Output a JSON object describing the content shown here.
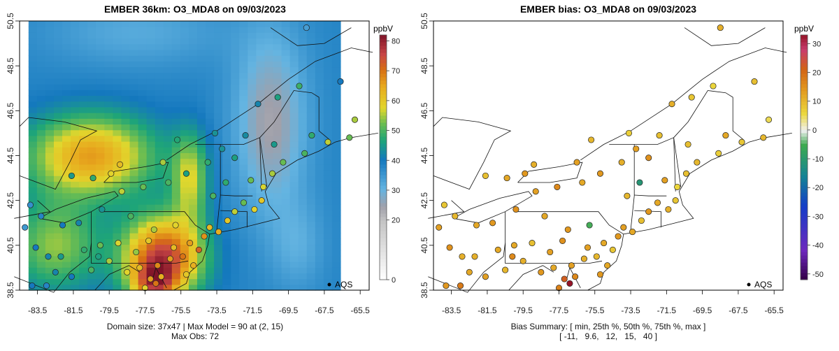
{
  "chart_data": [
    {
      "type": "heatmap",
      "title": "EMBER 36km: O3_MDA8 on 09/03/2023",
      "x_ticks": [
        "-83.5",
        "-81.5",
        "-79.5",
        "-77.5",
        "-75.5",
        "-73.5",
        "-71.5",
        "-69.5",
        "-67.5",
        "-65.5"
      ],
      "y_ticks": [
        "38.5",
        "40.5",
        "42.5",
        "44.5",
        "46.5",
        "48.5",
        "50.5"
      ],
      "xlim": [
        -84.5,
        -65.0
      ],
      "ylim": [
        38.5,
        50.5
      ],
      "colorbar": {
        "unit": "ppbV",
        "range": [
          0,
          82
        ],
        "tick_labels": [
          "0",
          "20",
          "30",
          "40",
          "50",
          "60",
          "70",
          "80"
        ],
        "tick_values": [
          0,
          20,
          30,
          40,
          50,
          60,
          70,
          80
        ]
      },
      "legend": {
        "label": "AQS",
        "position": "bottom-right"
      },
      "footer": [
        "Domain size: 37x47 | Max Model = 90 at (2, 15)",
        "Max Obs: 72"
      ],
      "stations": [
        {
          "lon": -83.8,
          "lat": 38.7,
          "v": 40
        },
        {
          "lon": -83.0,
          "lat": 38.7,
          "v": 38
        },
        {
          "lon": -82.5,
          "lat": 39.3,
          "v": 42
        },
        {
          "lon": -82.2,
          "lat": 40.0,
          "v": 45
        },
        {
          "lon": -81.6,
          "lat": 39.1,
          "v": 40
        },
        {
          "lon": -80.9,
          "lat": 40.3,
          "v": 48
        },
        {
          "lon": -80.5,
          "lat": 39.4,
          "v": 50
        },
        {
          "lon": -80.0,
          "lat": 40.5,
          "v": 52
        },
        {
          "lon": -79.5,
          "lat": 39.8,
          "v": 55
        },
        {
          "lon": -79.0,
          "lat": 40.6,
          "v": 57
        },
        {
          "lon": -78.5,
          "lat": 39.3,
          "v": 58
        },
        {
          "lon": -77.8,
          "lat": 39.5,
          "v": 62
        },
        {
          "lon": -77.2,
          "lat": 39.0,
          "v": 66
        },
        {
          "lon": -76.8,
          "lat": 39.6,
          "v": 68
        },
        {
          "lon": -76.6,
          "lat": 39.1,
          "v": 64
        },
        {
          "lon": -76.1,
          "lat": 39.9,
          "v": 66
        },
        {
          "lon": -75.9,
          "lat": 40.4,
          "v": 62
        },
        {
          "lon": -75.4,
          "lat": 40.0,
          "v": 70
        },
        {
          "lon": -75.0,
          "lat": 40.6,
          "v": 66
        },
        {
          "lon": -74.5,
          "lat": 40.3,
          "v": 72
        },
        {
          "lon": -74.2,
          "lat": 40.9,
          "v": 67
        },
        {
          "lon": -73.9,
          "lat": 41.3,
          "v": 62
        },
        {
          "lon": -73.4,
          "lat": 41.1,
          "v": 64
        },
        {
          "lon": -72.9,
          "lat": 41.6,
          "v": 60
        },
        {
          "lon": -72.5,
          "lat": 42.0,
          "v": 56
        },
        {
          "lon": -72.0,
          "lat": 42.4,
          "v": 52
        },
        {
          "lon": -71.4,
          "lat": 42.1,
          "v": 58
        },
        {
          "lon": -71.0,
          "lat": 42.5,
          "v": 60
        },
        {
          "lon": -70.9,
          "lat": 43.1,
          "v": 57
        },
        {
          "lon": -70.4,
          "lat": 43.7,
          "v": 55
        },
        {
          "lon": -69.8,
          "lat": 44.2,
          "v": 52
        },
        {
          "lon": -68.6,
          "lat": 44.6,
          "v": 50
        },
        {
          "lon": -68.2,
          "lat": 45.4,
          "v": 48
        },
        {
          "lon": -67.3,
          "lat": 45.1,
          "v": 56
        },
        {
          "lon": -72.5,
          "lat": 44.4,
          "v": 46
        },
        {
          "lon": -73.2,
          "lat": 44.8,
          "v": 44
        },
        {
          "lon": -74.0,
          "lat": 44.2,
          "v": 48
        },
        {
          "lon": -75.2,
          "lat": 43.7,
          "v": 46
        },
        {
          "lon": -76.2,
          "lat": 43.3,
          "v": 50
        },
        {
          "lon": -77.6,
          "lat": 43.1,
          "v": 52
        },
        {
          "lon": -78.8,
          "lat": 42.9,
          "v": 56
        },
        {
          "lon": -79.9,
          "lat": 42.1,
          "v": 44
        },
        {
          "lon": -81.2,
          "lat": 41.5,
          "v": 42
        },
        {
          "lon": -82.1,
          "lat": 41.4,
          "v": 40
        },
        {
          "lon": -83.3,
          "lat": 41.8,
          "v": 38
        },
        {
          "lon": -83.9,
          "lat": 42.3,
          "v": 36
        },
        {
          "lon": -84.2,
          "lat": 41.3,
          "v": 35
        },
        {
          "lon": -83.6,
          "lat": 40.4,
          "v": 40
        },
        {
          "lon": -82.9,
          "lat": 40.0,
          "v": 42
        },
        {
          "lon": -81.6,
          "lat": 43.6,
          "v": 45
        },
        {
          "lon": -80.4,
          "lat": 43.5,
          "v": 48
        },
        {
          "lon": -79.4,
          "lat": 43.7,
          "v": 58
        },
        {
          "lon": -78.9,
          "lat": 44.1,
          "v": 62
        },
        {
          "lon": -76.5,
          "lat": 44.2,
          "v": 55
        },
        {
          "lon": -75.7,
          "lat": 45.2,
          "v": 47
        },
        {
          "lon": -73.6,
          "lat": 45.5,
          "v": 44
        },
        {
          "lon": -71.9,
          "lat": 45.4,
          "v": 43
        },
        {
          "lon": -71.2,
          "lat": 46.8,
          "v": 42
        },
        {
          "lon": -70.1,
          "lat": 47.1,
          "v": 46
        },
        {
          "lon": -68.9,
          "lat": 47.6,
          "v": 49
        },
        {
          "lon": -66.1,
          "lat": 45.3,
          "v": 52
        },
        {
          "lon": -65.8,
          "lat": 46.1,
          "v": 55
        },
        {
          "lon": -66.6,
          "lat": 47.8,
          "v": 40
        },
        {
          "lon": -68.5,
          "lat": 50.2,
          "v": 34
        },
        {
          "lon": -75.8,
          "lat": 41.4,
          "v": 58
        },
        {
          "lon": -77.0,
          "lat": 41.2,
          "v": 55
        },
        {
          "lon": -78.3,
          "lat": 41.8,
          "v": 50
        },
        {
          "lon": -80.1,
          "lat": 40.0,
          "v": 46
        },
        {
          "lon": -78.0,
          "lat": 40.2,
          "v": 54
        },
        {
          "lon": -77.3,
          "lat": 40.7,
          "v": 60
        },
        {
          "lon": -74.8,
          "lat": 39.6,
          "v": 64
        },
        {
          "lon": -75.2,
          "lat": 39.2,
          "v": 60
        },
        {
          "lon": -76.9,
          "lat": 38.8,
          "v": 70
        },
        {
          "lon": -77.5,
          "lat": 38.6,
          "v": 58
        },
        {
          "lon": -73.7,
          "lat": 42.7,
          "v": 50
        },
        {
          "lon": -73.0,
          "lat": 43.3,
          "v": 48
        },
        {
          "lon": -71.6,
          "lat": 43.4,
          "v": 52
        },
        {
          "lon": -70.3,
          "lat": 45.0,
          "v": 45
        }
      ]
    },
    {
      "type": "scatter",
      "title": "EMBER bias: O3_MDA8 on 09/03/2023",
      "x_ticks": [
        "-83.5",
        "-81.5",
        "-79.5",
        "-77.5",
        "-75.5",
        "-73.5",
        "-71.5",
        "-69.5",
        "-67.5",
        "-65.5"
      ],
      "y_ticks": [
        "38.5",
        "40.5",
        "42.5",
        "44.5",
        "46.5",
        "48.5",
        "50.5"
      ],
      "xlim": [
        -84.5,
        -65.0
      ],
      "ylim": [
        38.5,
        50.5
      ],
      "colorbar": {
        "unit": "ppbV",
        "range": [
          -52,
          33
        ],
        "tick_labels": [
          "-50",
          "-40",
          "-30",
          "-20",
          "-10",
          "0",
          "10",
          "20",
          "30"
        ],
        "tick_values": [
          -50,
          -40,
          -30,
          -20,
          -10,
          0,
          10,
          20,
          30
        ]
      },
      "legend": {
        "label": "AQS",
        "position": "bottom-right"
      },
      "footer": [
        "Bias Summary: [ min, 25th %, 50th %, 75th %, max ]",
        "[ -11,   9.6,   12,   15,   40 ]"
      ],
      "bias_summary": {
        "min": -11,
        "p25": 9.6,
        "p50": 12,
        "p75": 15,
        "max": 40
      },
      "stations": [
        {
          "lon": -83.8,
          "lat": 38.7,
          "v": 14
        },
        {
          "lon": -83.0,
          "lat": 38.7,
          "v": 18
        },
        {
          "lon": -82.5,
          "lat": 39.3,
          "v": 12
        },
        {
          "lon": -82.2,
          "lat": 40.0,
          "v": 11
        },
        {
          "lon": -81.6,
          "lat": 39.1,
          "v": 13
        },
        {
          "lon": -80.9,
          "lat": 40.3,
          "v": 12
        },
        {
          "lon": -80.5,
          "lat": 39.4,
          "v": 10
        },
        {
          "lon": -80.0,
          "lat": 40.5,
          "v": 12
        },
        {
          "lon": -79.5,
          "lat": 39.8,
          "v": 11
        },
        {
          "lon": -79.0,
          "lat": 40.6,
          "v": 9
        },
        {
          "lon": -78.5,
          "lat": 39.3,
          "v": 14
        },
        {
          "lon": -77.8,
          "lat": 39.5,
          "v": 12
        },
        {
          "lon": -77.2,
          "lat": 39.0,
          "v": 22
        },
        {
          "lon": -76.8,
          "lat": 39.6,
          "v": 13
        },
        {
          "lon": -76.6,
          "lat": 39.1,
          "v": 16
        },
        {
          "lon": -76.1,
          "lat": 39.9,
          "v": 11
        },
        {
          "lon": -75.9,
          "lat": 40.4,
          "v": 13
        },
        {
          "lon": -75.4,
          "lat": 40.0,
          "v": 10
        },
        {
          "lon": -75.0,
          "lat": 40.6,
          "v": 12
        },
        {
          "lon": -74.5,
          "lat": 40.3,
          "v": 8
        },
        {
          "lon": -74.2,
          "lat": 40.9,
          "v": 14
        },
        {
          "lon": -73.9,
          "lat": 41.3,
          "v": 13
        },
        {
          "lon": -73.4,
          "lat": 41.1,
          "v": 12
        },
        {
          "lon": -72.9,
          "lat": 41.6,
          "v": 9
        },
        {
          "lon": -72.5,
          "lat": 42.0,
          "v": 14
        },
        {
          "lon": -72.0,
          "lat": 42.4,
          "v": 12
        },
        {
          "lon": -71.4,
          "lat": 42.1,
          "v": 11
        },
        {
          "lon": -71.0,
          "lat": 42.5,
          "v": 8
        },
        {
          "lon": -70.9,
          "lat": 43.1,
          "v": 6
        },
        {
          "lon": -70.4,
          "lat": 43.7,
          "v": 9
        },
        {
          "lon": -69.8,
          "lat": 44.2,
          "v": 10
        },
        {
          "lon": -68.6,
          "lat": 44.6,
          "v": 7
        },
        {
          "lon": -68.2,
          "lat": 45.4,
          "v": 12
        },
        {
          "lon": -67.3,
          "lat": 45.1,
          "v": 8
        },
        {
          "lon": -72.5,
          "lat": 44.4,
          "v": 15
        },
        {
          "lon": -73.2,
          "lat": 44.8,
          "v": 13
        },
        {
          "lon": -74.0,
          "lat": 44.2,
          "v": 11
        },
        {
          "lon": -75.2,
          "lat": 43.7,
          "v": 14
        },
        {
          "lon": -76.2,
          "lat": 43.3,
          "v": 12
        },
        {
          "lon": -77.6,
          "lat": 43.1,
          "v": 16
        },
        {
          "lon": -78.8,
          "lat": 42.9,
          "v": 13
        },
        {
          "lon": -79.9,
          "lat": 42.1,
          "v": 15
        },
        {
          "lon": -81.2,
          "lat": 41.5,
          "v": 14
        },
        {
          "lon": -82.1,
          "lat": 41.4,
          "v": 12
        },
        {
          "lon": -83.3,
          "lat": 41.8,
          "v": 10
        },
        {
          "lon": -83.9,
          "lat": 42.3,
          "v": 8
        },
        {
          "lon": -84.2,
          "lat": 41.3,
          "v": 13
        },
        {
          "lon": -83.6,
          "lat": 40.4,
          "v": 15
        },
        {
          "lon": -82.9,
          "lat": 40.0,
          "v": 11
        },
        {
          "lon": -81.6,
          "lat": 43.6,
          "v": 9
        },
        {
          "lon": -80.4,
          "lat": 43.5,
          "v": 12
        },
        {
          "lon": -79.4,
          "lat": 43.7,
          "v": 14
        },
        {
          "lon": -78.9,
          "lat": 44.1,
          "v": 11
        },
        {
          "lon": -76.5,
          "lat": 44.2,
          "v": 13
        },
        {
          "lon": -75.7,
          "lat": 45.2,
          "v": 10
        },
        {
          "lon": -73.6,
          "lat": 45.5,
          "v": 7
        },
        {
          "lon": -71.9,
          "lat": 45.4,
          "v": 9
        },
        {
          "lon": -71.2,
          "lat": 46.8,
          "v": 11
        },
        {
          "lon": -70.1,
          "lat": 47.1,
          "v": 8
        },
        {
          "lon": -68.9,
          "lat": 47.6,
          "v": 6
        },
        {
          "lon": -66.1,
          "lat": 45.3,
          "v": 10
        },
        {
          "lon": -65.8,
          "lat": 46.1,
          "v": 5
        },
        {
          "lon": -66.6,
          "lat": 47.8,
          "v": 9
        },
        {
          "lon": -68.5,
          "lat": 50.2,
          "v": 11
        },
        {
          "lon": -75.8,
          "lat": 41.4,
          "v": -5
        },
        {
          "lon": -77.0,
          "lat": 41.2,
          "v": 14
        },
        {
          "lon": -78.3,
          "lat": 41.8,
          "v": 12
        },
        {
          "lon": -80.1,
          "lat": 40.0,
          "v": 16
        },
        {
          "lon": -78.0,
          "lat": 40.2,
          "v": 13
        },
        {
          "lon": -77.3,
          "lat": 40.7,
          "v": 15
        },
        {
          "lon": -74.8,
          "lat": 39.6,
          "v": 12
        },
        {
          "lon": -75.2,
          "lat": 39.2,
          "v": 14
        },
        {
          "lon": -76.9,
          "lat": 38.8,
          "v": 40
        },
        {
          "lon": -77.5,
          "lat": 38.6,
          "v": 17
        },
        {
          "lon": -73.7,
          "lat": 42.7,
          "v": 10
        },
        {
          "lon": -73.0,
          "lat": 43.3,
          "v": -11
        },
        {
          "lon": -71.6,
          "lat": 43.4,
          "v": 13
        },
        {
          "lon": -70.3,
          "lat": 45.0,
          "v": 9
        }
      ]
    }
  ]
}
